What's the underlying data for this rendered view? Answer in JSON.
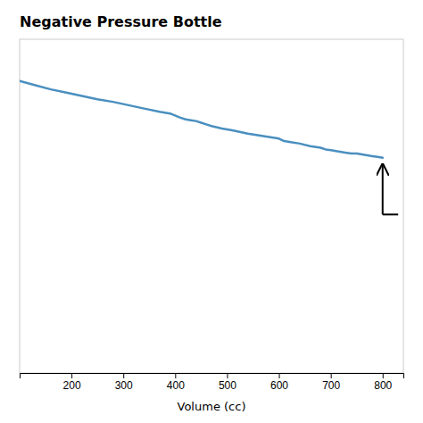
{
  "chart_data": {
    "type": "line",
    "title": "Negative Pressure Bottle",
    "x_label": "Volume (cc)",
    "x": [
      100,
      130,
      160,
      190,
      220,
      250,
      280,
      310,
      340,
      370,
      390,
      410,
      420,
      430,
      440,
      450,
      460,
      470,
      490,
      510,
      540,
      570,
      600,
      610,
      620,
      640,
      660,
      680,
      690,
      700,
      710,
      720,
      730,
      740,
      750,
      760,
      770,
      780,
      790,
      800
    ],
    "values": [
      0.0,
      -0.05,
      -0.1,
      -0.14,
      -0.18,
      -0.22,
      -0.25,
      -0.29,
      -0.33,
      -0.37,
      -0.39,
      -0.44,
      -0.46,
      -0.47,
      -0.48,
      -0.5,
      -0.52,
      -0.54,
      -0.57,
      -0.59,
      -0.63,
      -0.66,
      -0.69,
      -0.72,
      -0.73,
      -0.75,
      -0.78,
      -0.8,
      -0.82,
      -0.83,
      -0.84,
      -0.85,
      -0.86,
      -0.87,
      -0.87,
      -0.88,
      -0.89,
      -0.9,
      -0.91,
      -0.92
    ],
    "color": "#4a8fc0",
    "xlim": [
      100,
      840
    ],
    "xticks": [
      200,
      300,
      400,
      500,
      600,
      700,
      800
    ],
    "ylim": [
      -3.5,
      0.5
    ],
    "tick_labels": "x",
    "grid": false,
    "annotations": [
      {
        "type": "arrow",
        "x": 800,
        "y": -1.6,
        "y_end": -1.0,
        "x_bar_end": 830
      }
    ]
  }
}
